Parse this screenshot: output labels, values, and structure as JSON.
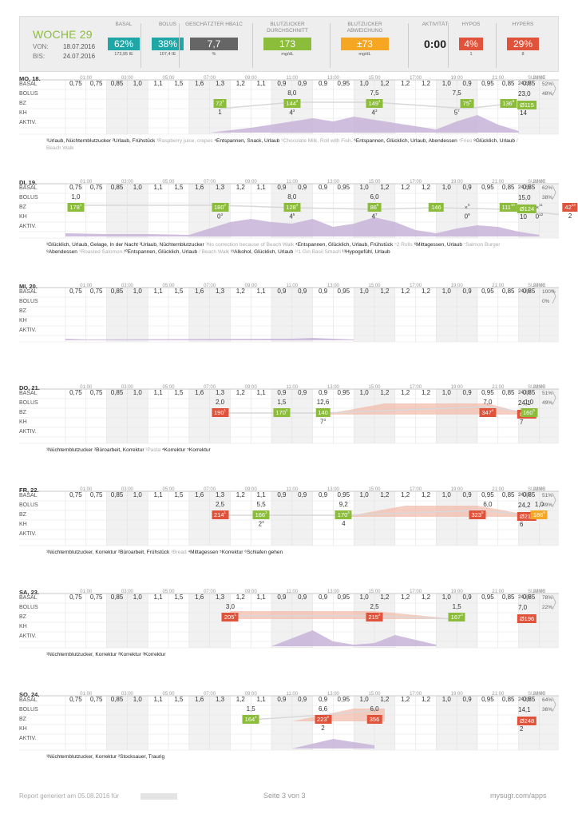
{
  "header": {
    "week": "WOCHE 29",
    "von_label": "VON:",
    "von": "18.07.2016",
    "bis_label": "BIS:",
    "bis": "24.07.2016",
    "stats": [
      {
        "label": "BASAL",
        "value": "62%",
        "sub": "173,95 IE",
        "color": "#1fa7a7"
      },
      {
        "label": "BOLUS",
        "value": "38%",
        "sub": "107,4 IE",
        "color": "#1fa7a7"
      },
      {
        "label": "GESCHÄTZTER HBA1C",
        "value": "7,7",
        "sub": "%",
        "color": "#666666"
      },
      {
        "label": "BLUTZUCKER DURCHSCHNITT",
        "value": "173",
        "sub": "mg/dL",
        "color": "#8cbd3a"
      },
      {
        "label": "BLUTZUCKER ABWEICHUNG",
        "value": "±73",
        "sub": "mg/dL",
        "color": "#f5a623"
      },
      {
        "label": "AKTIVITÄT",
        "value": "0:00",
        "sub": "",
        "color": ""
      },
      {
        "label": "HYPOS",
        "value": "4%",
        "sub": "1",
        "color": "#e0533a"
      },
      {
        "label": "HYPERS",
        "value": "29%",
        "sub": "8",
        "color": "#e0533a"
      }
    ]
  },
  "colors": {
    "green": "#8cbd3a",
    "red": "#e0533a",
    "orange": "#f5a623",
    "purple": "#c8b3d8",
    "pink": "#f2b8a6"
  },
  "time_ticks": [
    "01:00",
    "03:00",
    "05:00",
    "07:00",
    "09:00",
    "11:00",
    "13:00",
    "15:00",
    "17:00",
    "19:00",
    "21:00",
    "23:00"
  ],
  "summe_label": "SUMME",
  "row_labels": [
    "BASAL",
    "BOLUS",
    "BZ",
    "KH",
    "AKTIV."
  ],
  "basal_rates": [
    "0,75",
    "0,75",
    "0,85",
    "1,0",
    "1,1",
    "1,5",
    "1,6",
    "1,3",
    "1,2",
    "1,1",
    "0,9",
    "0,9",
    "0,9",
    "0,95",
    "1,0",
    "1,2",
    "1,2",
    "1,2",
    "1,0",
    "0,9",
    "0,95",
    "0,85",
    "0,85"
  ],
  "days": [
    {
      "name": "MO, 18.",
      "basal_total": "24,85",
      "bolus_total": "23,0",
      "basal_pct": "52%",
      "bolus_pct": "48%",
      "kh_total": "14",
      "avg_bz": "Ø115",
      "avg_color": "green",
      "bolus": [
        {
          "h": 11,
          "v": "8,0"
        },
        {
          "h": 15,
          "v": "7,5"
        },
        {
          "h": 19,
          "v": "7,5"
        }
      ],
      "bz": [
        {
          "h": 7.5,
          "v": "72",
          "n": "1",
          "c": "green"
        },
        {
          "h": 11,
          "v": "144",
          "n": "2",
          "c": "green"
        },
        {
          "h": 15,
          "v": "149",
          "n": "4",
          "c": "green"
        },
        {
          "h": 19.5,
          "v": "75",
          "n": "5",
          "c": "green"
        },
        {
          "h": 21.5,
          "v": "136",
          "n": "6",
          "c": "green"
        }
      ],
      "kh": [
        {
          "h": 7.5,
          "v": "1",
          "n": ""
        },
        {
          "h": 11,
          "v": "4",
          "n": "3"
        },
        {
          "h": 15,
          "v": "4",
          "n": "3"
        },
        {
          "h": 19,
          "v": "5",
          "n": "7"
        }
      ],
      "notes": [
        {
          "t": "¹Urlaub, Nüchternblutzucker ",
          "m": false
        },
        {
          "t": "²Urlaub, Frühstück ",
          "m": false
        },
        {
          "t": "³Raspberry juice, crepes ",
          "m": true
        },
        {
          "t": "⁴Entspannen, Snack, Urlaub ",
          "m": false
        },
        {
          "t": "⁵Chocolate Milk, Roll with Fish. ",
          "m": true
        },
        {
          "t": "⁶Entspannen, Glücklich, Urlaub, Abendessen ",
          "m": false
        },
        {
          "t": "⁷Fries ",
          "m": true
        },
        {
          "t": "⁸Glücklich, Urlaub ",
          "m": false
        },
        {
          "t": "/ Beach Walk",
          "m": true
        }
      ]
    },
    {
      "name": "DI, 19.",
      "basal_total": "24,85",
      "bolus_total": "15,0",
      "basal_pct": "62%",
      "bolus_pct": "38%",
      "kh_total": "10",
      "avg_bz": "Ø124",
      "avg_color": "green",
      "bolus": [
        {
          "h": 0.5,
          "v": "1,0"
        },
        {
          "h": 11,
          "v": "8,0"
        },
        {
          "h": 15,
          "v": "6,0"
        }
      ],
      "bz": [
        {
          "h": 0.5,
          "v": "178",
          "n": "1",
          "c": "green"
        },
        {
          "h": 7.5,
          "v": "180",
          "n": "2",
          "c": "green"
        },
        {
          "h": 11,
          "v": "128",
          "n": "4",
          "c": "green"
        },
        {
          "h": 15,
          "v": "86",
          "n": "6",
          "c": "green"
        },
        {
          "h": 18,
          "v": "146",
          "n": "",
          "c": "green"
        },
        {
          "h": 19.5,
          "v": "×",
          "n": "8",
          "c": "none"
        },
        {
          "h": 21.5,
          "v": "111",
          "n": "10",
          "c": "green"
        },
        {
          "h": 23,
          "v": "×",
          "n": "11",
          "c": "none"
        },
        {
          "h": 24.5,
          "v": "42",
          "n": "13",
          "c": "red"
        }
      ],
      "kh": [
        {
          "h": 7.5,
          "v": "0",
          "n": "3"
        },
        {
          "h": 11,
          "v": "4",
          "n": "5"
        },
        {
          "h": 15,
          "v": "4",
          "n": "7"
        },
        {
          "h": 19.5,
          "v": "0",
          "n": "9"
        },
        {
          "h": 23,
          "v": "0",
          "n": "12"
        },
        {
          "h": 24.5,
          "v": "2",
          "n": ""
        }
      ],
      "notes": [
        {
          "t": "¹Glücklich, Urlaub, Gelage, In der Nacht ",
          "m": false
        },
        {
          "t": "²Urlaub, Nüchternblutzucker ",
          "m": false
        },
        {
          "t": "³No correction because of Beach Walk ",
          "m": true
        },
        {
          "t": "⁴Entspannen, Glücklich, Urlaub, Frühstück ",
          "m": false
        },
        {
          "t": "⁵2 Rolls ",
          "m": true
        },
        {
          "t": "⁶Mittagessen, Urlaub ",
          "m": false
        },
        {
          "t": "⁷Salmon Burger ",
          "m": true
        },
        {
          "t": "⁸Abendessen ",
          "m": false
        },
        {
          "t": "⁹Roasted Salomon ",
          "m": true
        },
        {
          "t": "¹⁰Entspannen, Glücklich, Urlaub ",
          "m": false
        },
        {
          "t": "/ Beach Walk ",
          "m": true
        },
        {
          "t": "¹¹Alkohol, Glücklich, Urlaub ",
          "m": false
        },
        {
          "t": "¹²1 Gin Basil Smash ",
          "m": true
        },
        {
          "t": "¹³Hypogefühl, Urlaub",
          "m": false
        }
      ]
    },
    {
      "name": "MI, 20.",
      "basal_total": "24,85",
      "bolus_total": "",
      "basal_pct": "100%",
      "bolus_pct": "0%",
      "kh_total": "",
      "avg_bz": "",
      "avg_color": "",
      "bolus": [],
      "bz": [],
      "kh": [],
      "notes": []
    },
    {
      "name": "DO, 21.",
      "basal_total": "24,85",
      "bolus_total": "24,1",
      "basal_pct": "51%",
      "bolus_pct": "49%",
      "kh_total": "7",
      "avg_bz": "Ø201",
      "avg_color": "red",
      "bolus": [
        {
          "h": 7.5,
          "v": "2,0"
        },
        {
          "h": 10.5,
          "v": "1,5"
        },
        {
          "h": 12.5,
          "v": "12,6"
        },
        {
          "h": 20.5,
          "v": "7,0"
        },
        {
          "h": 22.5,
          "v": "1,0"
        }
      ],
      "bz": [
        {
          "h": 7.5,
          "v": "190",
          "n": "1",
          "c": "red"
        },
        {
          "h": 10.5,
          "v": "170",
          "n": "2",
          "c": "green"
        },
        {
          "h": 12.5,
          "v": "140",
          "n": "",
          "c": "green"
        },
        {
          "h": 20.5,
          "v": "347",
          "n": "4",
          "c": "red"
        },
        {
          "h": 22.5,
          "v": "160",
          "n": "5",
          "c": "green"
        }
      ],
      "kh": [
        {
          "h": 12.5,
          "v": "7",
          "n": "3"
        }
      ],
      "notes": [
        {
          "t": "¹Nüchternblutzucker ",
          "m": false
        },
        {
          "t": "²Büroarbeit, Korrektur ",
          "m": false
        },
        {
          "t": "³Pasta ",
          "m": true
        },
        {
          "t": "⁴Korrektur ",
          "m": false
        },
        {
          "t": "⁵Korrektur",
          "m": false
        }
      ]
    },
    {
      "name": "FR, 22.",
      "basal_total": "24,85",
      "bolus_total": "24,2",
      "basal_pct": "51%",
      "bolus_pct": "49%",
      "kh_total": "6",
      "avg_bz": "Ø212",
      "avg_color": "red",
      "bolus": [
        {
          "h": 7.5,
          "v": "2,5"
        },
        {
          "h": 9.5,
          "v": "5,5"
        },
        {
          "h": 13.5,
          "v": "9,2"
        },
        {
          "h": 20.5,
          "v": "6,0"
        },
        {
          "h": 23,
          "v": "1,0"
        }
      ],
      "bz": [
        {
          "h": 7.5,
          "v": "214",
          "n": "1",
          "c": "red"
        },
        {
          "h": 9.5,
          "v": "166",
          "n": "2",
          "c": "green"
        },
        {
          "h": 13.5,
          "v": "170",
          "n": "4",
          "c": "green"
        },
        {
          "h": 20,
          "v": "323",
          "n": "5",
          "c": "red"
        },
        {
          "h": 23,
          "v": "186",
          "n": "6",
          "c": "orange"
        }
      ],
      "kh": [
        {
          "h": 9.5,
          "v": "2",
          "n": "3"
        },
        {
          "h": 13.5,
          "v": "4",
          "n": ""
        }
      ],
      "notes": [
        {
          "t": "¹Nüchternblutzucker, Korrektur ",
          "m": false
        },
        {
          "t": "²Büroarbeit, Frühstück ",
          "m": false
        },
        {
          "t": "³Bread ",
          "m": true
        },
        {
          "t": "⁴Mittagessen ",
          "m": false
        },
        {
          "t": "⁵Korrektur ",
          "m": false
        },
        {
          "t": "⁶Schlafen gehen",
          "m": false
        }
      ]
    },
    {
      "name": "SA, 23.",
      "basal_total": "24,85",
      "bolus_total": "7,0",
      "basal_pct": "78%",
      "bolus_pct": "22%",
      "kh_total": "",
      "avg_bz": "Ø196",
      "avg_color": "red",
      "bolus": [
        {
          "h": 8,
          "v": "3,0"
        },
        {
          "h": 15,
          "v": "2,5"
        },
        {
          "h": 19,
          "v": "1,5"
        }
      ],
      "bz": [
        {
          "h": 8,
          "v": "205",
          "n": "1",
          "c": "red"
        },
        {
          "h": 15,
          "v": "215",
          "n": "2",
          "c": "red"
        },
        {
          "h": 19,
          "v": "167",
          "n": "3",
          "c": "green"
        }
      ],
      "kh": [],
      "notes": [
        {
          "t": "¹Nüchternblutzucker, Korrektur ",
          "m": false
        },
        {
          "t": "²Korrektur ",
          "m": false
        },
        {
          "t": "³Korrektur",
          "m": false
        }
      ]
    },
    {
      "name": "SO, 24.",
      "basal_total": "24,85",
      "bolus_total": "14,1",
      "basal_pct": "64%",
      "bolus_pct": "36%",
      "kh_total": "2",
      "avg_bz": "Ø248",
      "avg_color": "red",
      "bolus": [
        {
          "h": 9,
          "v": "1,5"
        },
        {
          "h": 12.5,
          "v": "6,6"
        },
        {
          "h": 15,
          "v": "6,0"
        }
      ],
      "bz": [
        {
          "h": 9,
          "v": "164",
          "n": "1",
          "c": "green"
        },
        {
          "h": 12.5,
          "v": "223",
          "n": "2",
          "c": "red"
        },
        {
          "h": 15,
          "v": "356",
          "n": "",
          "c": "red"
        }
      ],
      "kh": [
        {
          "h": 12.5,
          "v": "2",
          "n": ""
        }
      ],
      "notes": [
        {
          "t": "¹Nüchternblutzucker, Korrektur ",
          "m": false
        },
        {
          "t": "²Stocksauer, Traurig",
          "m": false
        }
      ]
    }
  ],
  "footer": {
    "generated": "Report generiert am 05.08.2016 für",
    "page": "Seite 3 von 3",
    "site": "mysugr.com/apps"
  }
}
